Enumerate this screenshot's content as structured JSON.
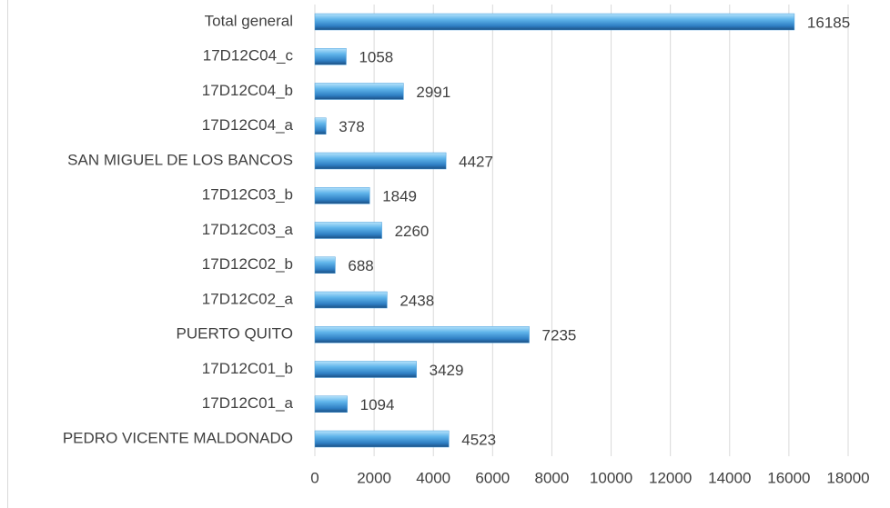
{
  "chart_data": {
    "type": "bar",
    "orientation": "horizontal",
    "categories": [
      "Total general",
      "17D12C04_c",
      "17D12C04_b",
      "17D12C04_a",
      "SAN MIGUEL DE LOS BANCOS",
      "17D12C03_b",
      "17D12C03_a",
      "17D12C02_b",
      "17D12C02_a",
      "PUERTO QUITO",
      "17D12C01_b",
      "17D12C01_a",
      "PEDRO VICENTE MALDONADO"
    ],
    "values": [
      16185,
      1058,
      2991,
      378,
      4427,
      1849,
      2260,
      688,
      2438,
      7235,
      3429,
      1094,
      4523
    ],
    "color": "#4a9fdc",
    "xlim": [
      0,
      18000
    ],
    "xticks": [
      0,
      2000,
      4000,
      6000,
      8000,
      10000,
      12000,
      14000,
      16000,
      18000
    ],
    "grid": true
  }
}
